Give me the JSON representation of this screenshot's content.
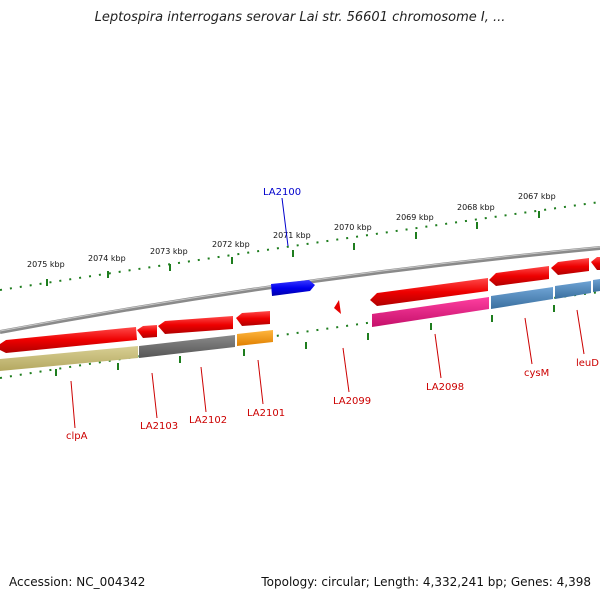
{
  "title": "Leptospira interrogans serovar Lai str. 56601 chromosome I, ...",
  "footer": {
    "accession": "Accession: NC_004342",
    "summary": "Topology: circular; Length: 4,332,241 bp; Genes: 4,398"
  },
  "colors": {
    "backbone": "#8a8a8a",
    "tick": "#1e7d1e",
    "gene_red": "#e60000",
    "gene_blue": "#0000ee",
    "label_red": "#cc0000",
    "label_blue": "#0000cc",
    "band_olive": "#c8bd7a",
    "band_gray": "#6e6e6e",
    "band_orange": "#ff9900",
    "band_magenta": "#e6197f",
    "band_steel": "#4a84b8"
  },
  "ruler": [
    {
      "label": "2075 kbp"
    },
    {
      "label": "2074 kbp"
    },
    {
      "label": "2073 kbp"
    },
    {
      "label": "2072 kbp"
    },
    {
      "label": "2071 kbp"
    },
    {
      "label": "2070 kbp"
    },
    {
      "label": "2069 kbp"
    },
    {
      "label": "2068 kbp"
    },
    {
      "label": "2067 kbp"
    }
  ],
  "genes": {
    "top": [
      {
        "name": "LA2100",
        "color": "blue"
      }
    ],
    "bottom": [
      {
        "name": "clpA"
      },
      {
        "name": "LA2103"
      },
      {
        "name": "LA2102"
      },
      {
        "name": "LA2101"
      },
      {
        "name": "LA2099"
      },
      {
        "name": "LA2098"
      },
      {
        "name": "cysM"
      },
      {
        "name": "leuD"
      }
    ]
  }
}
